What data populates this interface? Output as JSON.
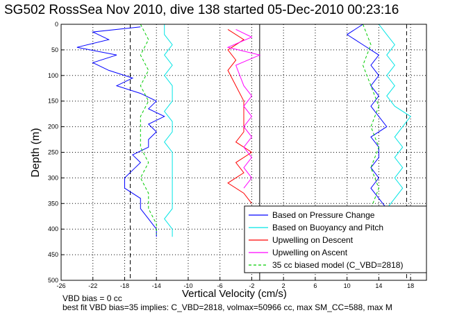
{
  "title": "SG502 RossSea Nov 2010, dive 138 started 05-Dec-2010 00:23:16",
  "notes": {
    "line1": "VBD bias = 0 cc",
    "line2": "best fit VBD bias=35 implies: C_VBD=2818, volmax=50966 cc, max SM_CC=588, max M"
  },
  "chart_data": {
    "type": "line",
    "xlabel": "Vertical Velocity (cm/s)",
    "ylabel": "Depth (m)",
    "xlim": [
      -26,
      20
    ],
    "ylim": [
      0,
      500
    ],
    "y_reversed": true,
    "grid": true,
    "xticks": [
      -26,
      -22,
      -18,
      -14,
      -10,
      -6,
      -2,
      2,
      6,
      10,
      14,
      18
    ],
    "yticks": [
      0,
      50,
      100,
      150,
      200,
      250,
      300,
      350,
      400,
      450,
      500
    ],
    "legend_position": "bottom-right",
    "reference_lines": [
      {
        "style": "dashed",
        "x": -17.3
      },
      {
        "style": "dashed",
        "x": 17.5
      },
      {
        "style": "solid",
        "x": -1.0
      }
    ],
    "series": [
      {
        "name": "Based on Pressure Change",
        "color": "#0000ff",
        "style": "solid",
        "groups": [
          {
            "x": [
              -16,
              -22,
              -20,
              -24,
              -19,
              -22,
              -20,
              -17,
              -19,
              -16,
              -14,
              -15,
              -13,
              -15,
              -14,
              -15,
              -15,
              -17,
              -16,
              -17,
              -18,
              -18,
              -16,
              -16,
              -15,
              -14,
              -14
            ],
            "y": [
              5,
              15,
              30,
              45,
              60,
              75,
              90,
              105,
              120,
              135,
              150,
              165,
              180,
              195,
              210,
              225,
              240,
              255,
              270,
              285,
              300,
              320,
              340,
              360,
              380,
              400,
              415
            ]
          },
          {
            "x": [
              12,
              10,
              12,
              14,
              13,
              14,
              13,
              14,
              13,
              14,
              15,
              13,
              14,
              14,
              13,
              14,
              13,
              14,
              15,
              15,
              14,
              13
            ],
            "y": [
              0,
              20,
              40,
              60,
              80,
              100,
              120,
              140,
              160,
              180,
              200,
              220,
              240,
              260,
              280,
              300,
              320,
              340,
              360,
              380,
              400,
              415
            ]
          }
        ]
      },
      {
        "name": "Based on Buoyancy and Pitch",
        "color": "#00e5e5",
        "style": "solid",
        "groups": [
          {
            "x": [
              -13,
              -13,
              -12,
              -13,
              -12,
              -13,
              -12,
              -12,
              -13,
              -12,
              -12,
              -13,
              -12,
              -12,
              -12,
              -12,
              -12,
              -13,
              -12,
              -12,
              -12
            ],
            "y": [
              0,
              20,
              40,
              60,
              80,
              100,
              120,
              150,
              170,
              190,
              210,
              230,
              250,
              270,
              300,
              330,
              360,
              380,
              400,
              410,
              415
            ]
          },
          {
            "x": [
              14,
              15,
              16,
              15,
              16,
              15,
              16,
              15,
              16,
              18,
              17,
              16,
              17,
              16,
              17,
              16,
              17,
              16,
              15,
              15
            ],
            "y": [
              0,
              20,
              40,
              60,
              80,
              100,
              120,
              140,
              160,
              180,
              200,
              220,
              240,
              260,
              280,
              300,
              320,
              340,
              360,
              380
            ]
          }
        ]
      },
      {
        "name": "Upwelling on Descent",
        "color": "#ff0000",
        "style": "solid",
        "groups": [
          {
            "x": [
              -5,
              -3,
              -5,
              -4,
              -5,
              -3,
              -3,
              -3,
              -3,
              -4,
              -2,
              -4,
              -3,
              -5,
              -3,
              -2
            ],
            "y": [
              10,
              30,
              50,
              70,
              90,
              150,
              170,
              190,
              210,
              230,
              250,
              270,
              290,
              310,
              330,
              350
            ]
          }
        ]
      },
      {
        "name": "Upwelling on Ascent",
        "color": "#ff00ff",
        "style": "solid",
        "groups": [
          {
            "x": [
              -4,
              -2,
              -5,
              -1,
              -4,
              -3,
              -2,
              -3,
              -2,
              -3,
              -2,
              -3,
              -2,
              -3,
              -2,
              -3
            ],
            "y": [
              10,
              25,
              45,
              60,
              80,
              120,
              140,
              160,
              180,
              200,
              220,
              240,
              260,
              280,
              300,
              320
            ]
          }
        ]
      },
      {
        "name": "35 cc biased model (C_VBD=2818)",
        "color": "#00cc00",
        "style": "dashed",
        "groups": [
          {
            "x": [
              -16,
              -15,
              -16,
              -15,
              -16,
              -15,
              -16,
              -16,
              -16,
              -15,
              -16,
              -15,
              -15,
              -14,
              -14
            ],
            "y": [
              0,
              30,
              60,
              90,
              120,
              150,
              180,
              210,
              240,
              270,
              300,
              330,
              360,
              390,
              410
            ]
          },
          {
            "x": [
              12,
              13,
              12,
              13,
              14,
              13,
              14,
              13,
              14,
              13
            ],
            "y": [
              0,
              40,
              80,
              120,
              160,
              200,
              240,
              280,
              320,
              360
            ]
          }
        ]
      }
    ]
  }
}
